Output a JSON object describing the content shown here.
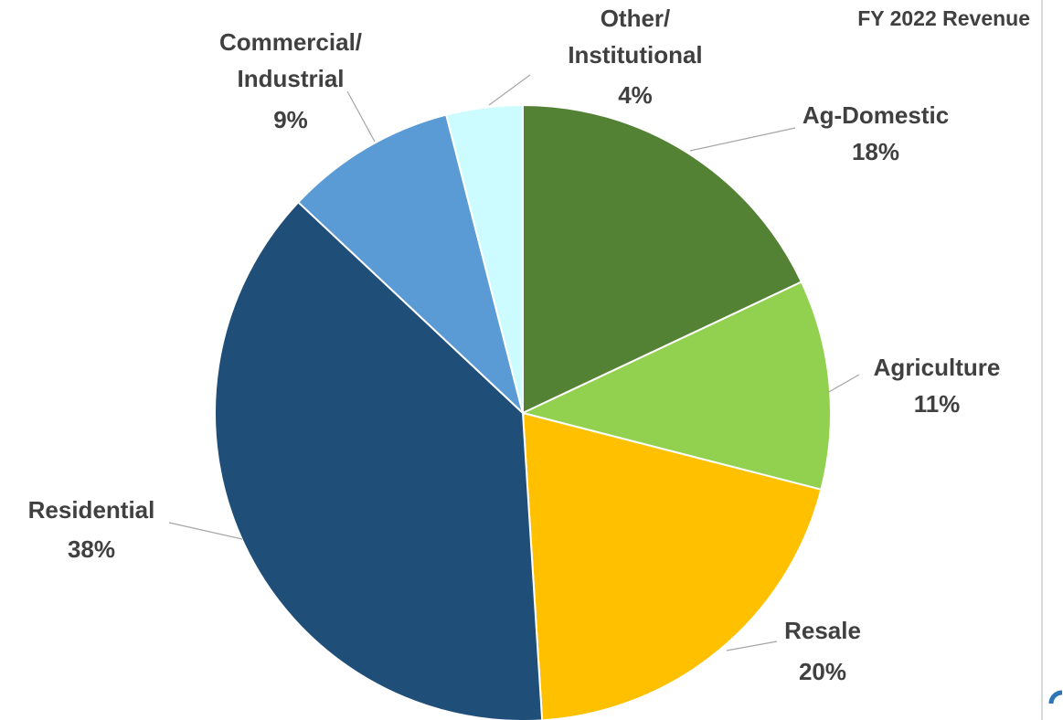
{
  "chart_data": {
    "type": "pie",
    "title": "FY 2022 Revenue",
    "categories": [
      "Ag-Domestic",
      "Agriculture",
      "Resale",
      "Residential",
      "Commercial/\nIndustrial",
      "Other/\nInstitutional"
    ],
    "values": [
      18,
      11,
      20,
      38,
      9,
      4
    ],
    "value_labels": [
      "18%",
      "11%",
      "20%",
      "38%",
      "9%",
      "4%"
    ],
    "colors": [
      "#548235",
      "#92d050",
      "#ffc000",
      "#1f4e79",
      "#5b9bd5",
      "#ccfcff"
    ]
  }
}
